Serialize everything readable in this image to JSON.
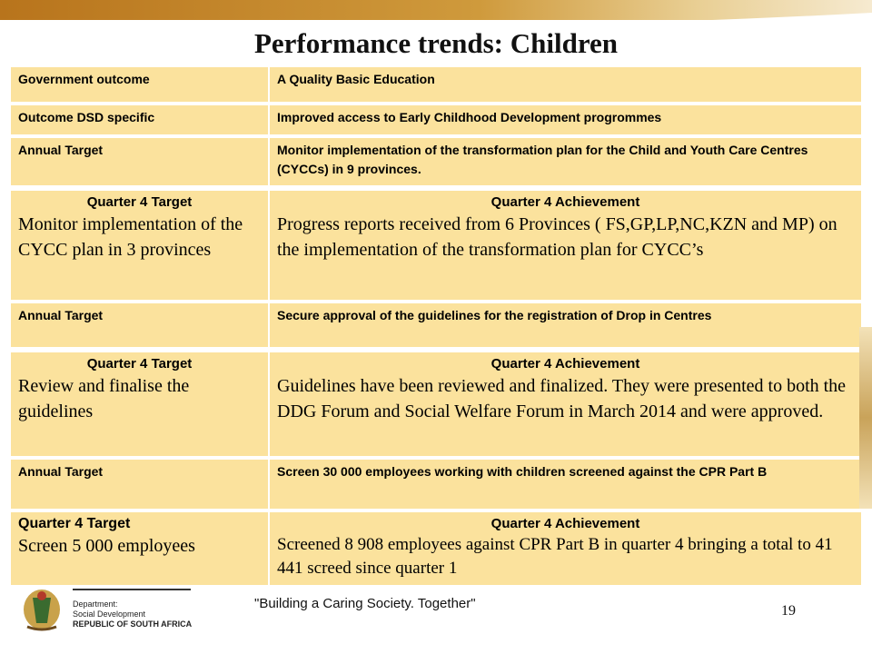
{
  "title": "Performance trends: Children",
  "rows": [
    {
      "left": "Government outcome",
      "right": "A Quality Basic Education"
    },
    {
      "left": "Outcome DSD specific",
      "right": "Improved access to Early Childhood Development progrommes"
    },
    {
      "left": "Annual Target",
      "right": "Monitor implementation of the transformation plan for the Child and Youth Care Centres (CYCCs)  in 9 provinces."
    },
    {
      "left_head": "Quarter 4 Target",
      "left": "Monitor implementation of the CYCC plan in 3 provinces",
      "right_head": "Quarter 4 Achievement",
      "right": "Progress reports received from 6 Provinces ( FS,GP,LP,NC,KZN and MP) on the implementation of the transformation plan for CYCC’s"
    },
    {
      "left": "Annual Target",
      "right": "Secure approval of the guidelines for the registration of Drop in Centres"
    },
    {
      "left_head": "Quarter 4 Target",
      "left": "Review and finalise the guidelines",
      "right_head": "Quarter 4 Achievement",
      "right": "Guidelines have been reviewed and finalized. They were presented to both the DDG Forum and Social Welfare Forum in March 2014 and were  approved."
    },
    {
      "left": "Annual Target",
      "right": "Screen  30 000   employees working with children screened against the CPR Part B"
    },
    {
      "left_head": "Quarter 4 Target",
      "left": "Screen 5 000 employees",
      "right_head": "Quarter 4 Achievement",
      "right": "Screened 8 908 employees against CPR Part B in quarter 4 bringing a total to 41 441 screed since quarter 1"
    }
  ],
  "footer": {
    "dept_line1": "Department:",
    "dept_line2": "Social Development",
    "dept_line3": "REPUBLIC OF SOUTH AFRICA",
    "tagline": "\"Building a Caring Society. Together\"",
    "page_number": "19"
  },
  "colors": {
    "row_fill": "#fbe29d",
    "band": "#b8741c"
  }
}
